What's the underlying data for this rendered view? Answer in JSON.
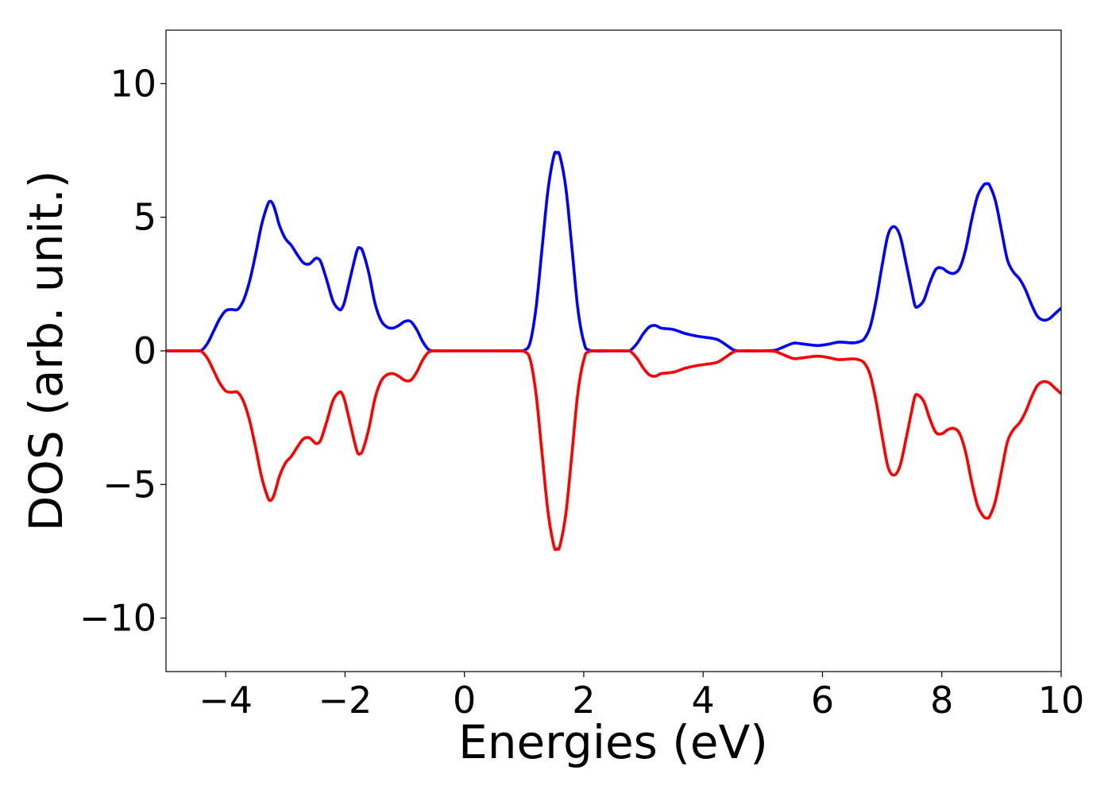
{
  "chart_data": {
    "type": "line",
    "xlabel": "Energies (eV)",
    "ylabel": "DOS (arb. unit.)",
    "xlim": [
      -5,
      10
    ],
    "ylim": [
      -12,
      12
    ],
    "xticks": [
      -4,
      -2,
      0,
      2,
      4,
      6,
      8,
      10
    ],
    "xtick_labels": [
      "−4",
      "−2",
      "0",
      "2",
      "4",
      "6",
      "8",
      "10"
    ],
    "yticks": [
      -10,
      -5,
      0,
      5,
      10
    ],
    "ytick_labels": [
      "−10",
      "−5",
      "0",
      "5",
      "10"
    ],
    "grid": false,
    "legend": "none",
    "series": [
      {
        "color": "#0000ff",
        "x": [
          -5.0,
          -4.5,
          -4.4,
          -4.3,
          -4.2,
          -4.1,
          -4.0,
          -3.9,
          -3.8,
          -3.7,
          -3.6,
          -3.5,
          -3.4,
          -3.3,
          -3.25,
          -3.2,
          -3.15,
          -3.1,
          -3.0,
          -2.9,
          -2.8,
          -2.7,
          -2.6,
          -2.5,
          -2.45,
          -2.4,
          -2.3,
          -2.2,
          -2.1,
          -2.05,
          -2.0,
          -1.9,
          -1.8,
          -1.75,
          -1.7,
          -1.6,
          -1.5,
          -1.4,
          -1.3,
          -1.2,
          -1.1,
          -1.0,
          -0.9,
          -0.8,
          -0.7,
          -0.6,
          -0.5,
          -0.3,
          0.0,
          0.5,
          0.9,
          1.0,
          1.1,
          1.2,
          1.3,
          1.4,
          1.5,
          1.55,
          1.6,
          1.7,
          1.8,
          1.9,
          2.0,
          2.1,
          2.5,
          2.75,
          2.8,
          2.9,
          3.0,
          3.1,
          3.2,
          3.3,
          3.5,
          3.7,
          3.9,
          4.2,
          4.3,
          4.4,
          4.5,
          4.6,
          5.0,
          5.2,
          5.3,
          5.5,
          5.6,
          5.9,
          6.1,
          6.2,
          6.3,
          6.5,
          6.6,
          6.7,
          6.8,
          6.9,
          7.0,
          7.1,
          7.2,
          7.3,
          7.4,
          7.5,
          7.55,
          7.6,
          7.7,
          7.8,
          7.9,
          8.0,
          8.1,
          8.2,
          8.3,
          8.4,
          8.5,
          8.6,
          8.7,
          8.75,
          8.8,
          8.9,
          9.0,
          9.1,
          9.2,
          9.3,
          9.4,
          9.5,
          9.6,
          9.7,
          9.8,
          9.9,
          10.0
        ],
        "y": [
          0.0,
          0.0,
          0.03,
          0.3,
          0.75,
          1.2,
          1.5,
          1.55,
          1.55,
          1.9,
          2.6,
          3.6,
          4.7,
          5.45,
          5.6,
          5.45,
          5.1,
          4.7,
          4.2,
          3.95,
          3.6,
          3.3,
          3.25,
          3.45,
          3.45,
          3.3,
          2.6,
          1.85,
          1.55,
          1.6,
          1.9,
          2.85,
          3.75,
          3.85,
          3.7,
          2.9,
          1.8,
          1.15,
          0.9,
          0.85,
          0.95,
          1.1,
          1.1,
          0.8,
          0.35,
          0.05,
          0.0,
          0.0,
          0.0,
          0.0,
          0.0,
          0.02,
          0.3,
          1.6,
          3.8,
          6.0,
          7.3,
          7.4,
          7.3,
          6.1,
          3.9,
          1.6,
          0.35,
          0.02,
          0.0,
          0.0,
          0.05,
          0.3,
          0.65,
          0.9,
          0.95,
          0.85,
          0.8,
          0.65,
          0.55,
          0.45,
          0.35,
          0.2,
          0.05,
          0.0,
          0.0,
          0.02,
          0.1,
          0.28,
          0.28,
          0.2,
          0.25,
          0.3,
          0.33,
          0.3,
          0.33,
          0.45,
          0.9,
          1.9,
          3.2,
          4.35,
          4.65,
          4.3,
          3.3,
          2.2,
          1.7,
          1.65,
          1.9,
          2.55,
          3.05,
          3.1,
          2.95,
          2.9,
          3.1,
          3.8,
          4.9,
          5.8,
          6.2,
          6.25,
          6.2,
          5.6,
          4.5,
          3.4,
          2.95,
          2.7,
          2.3,
          1.75,
          1.3,
          1.15,
          1.2,
          1.4,
          1.6
        ]
      },
      {
        "color": "#ff0000",
        "x": [
          -5.0,
          -4.5,
          -4.4,
          -4.3,
          -4.2,
          -4.1,
          -4.0,
          -3.9,
          -3.8,
          -3.7,
          -3.6,
          -3.5,
          -3.4,
          -3.3,
          -3.25,
          -3.2,
          -3.15,
          -3.1,
          -3.0,
          -2.9,
          -2.8,
          -2.7,
          -2.6,
          -2.5,
          -2.45,
          -2.4,
          -2.3,
          -2.2,
          -2.1,
          -2.05,
          -2.0,
          -1.9,
          -1.8,
          -1.75,
          -1.7,
          -1.6,
          -1.5,
          -1.4,
          -1.3,
          -1.2,
          -1.1,
          -1.0,
          -0.9,
          -0.8,
          -0.7,
          -0.6,
          -0.5,
          -0.3,
          0.0,
          0.5,
          0.9,
          1.0,
          1.1,
          1.2,
          1.3,
          1.4,
          1.5,
          1.55,
          1.6,
          1.7,
          1.8,
          1.9,
          2.0,
          2.1,
          2.5,
          2.75,
          2.8,
          2.9,
          3.0,
          3.1,
          3.2,
          3.3,
          3.5,
          3.7,
          3.9,
          4.2,
          4.3,
          4.4,
          4.5,
          4.6,
          5.0,
          5.2,
          5.3,
          5.5,
          5.6,
          5.9,
          6.1,
          6.2,
          6.3,
          6.5,
          6.6,
          6.7,
          6.8,
          6.9,
          7.0,
          7.1,
          7.2,
          7.3,
          7.4,
          7.5,
          7.55,
          7.6,
          7.7,
          7.8,
          7.9,
          8.0,
          8.1,
          8.2,
          8.3,
          8.4,
          8.5,
          8.6,
          8.7,
          8.75,
          8.8,
          8.9,
          9.0,
          9.1,
          9.2,
          9.3,
          9.4,
          9.5,
          9.6,
          9.7,
          9.8,
          9.9,
          10.0
        ],
        "y": [
          0.0,
          0.0,
          -0.03,
          -0.3,
          -0.75,
          -1.2,
          -1.5,
          -1.55,
          -1.55,
          -1.9,
          -2.6,
          -3.6,
          -4.7,
          -5.45,
          -5.6,
          -5.45,
          -5.1,
          -4.7,
          -4.2,
          -3.95,
          -3.6,
          -3.3,
          -3.25,
          -3.45,
          -3.45,
          -3.3,
          -2.6,
          -1.85,
          -1.55,
          -1.6,
          -1.9,
          -2.85,
          -3.75,
          -3.85,
          -3.7,
          -2.9,
          -1.8,
          -1.15,
          -0.9,
          -0.85,
          -0.95,
          -1.1,
          -1.1,
          -0.8,
          -0.35,
          -0.05,
          0.0,
          0.0,
          0.0,
          0.0,
          0.0,
          -0.02,
          -0.3,
          -1.6,
          -3.8,
          -6.0,
          -7.3,
          -7.4,
          -7.3,
          -6.1,
          -3.9,
          -1.6,
          -0.35,
          -0.02,
          0.0,
          0.0,
          -0.05,
          -0.3,
          -0.65,
          -0.9,
          -0.95,
          -0.85,
          -0.8,
          -0.65,
          -0.55,
          -0.45,
          -0.35,
          -0.2,
          -0.05,
          0.0,
          0.0,
          -0.02,
          -0.1,
          -0.28,
          -0.28,
          -0.2,
          -0.25,
          -0.3,
          -0.33,
          -0.3,
          -0.33,
          -0.45,
          -0.9,
          -1.9,
          -3.2,
          -4.35,
          -4.65,
          -4.3,
          -3.3,
          -2.2,
          -1.7,
          -1.65,
          -1.9,
          -2.55,
          -3.05,
          -3.1,
          -2.95,
          -2.9,
          -3.1,
          -3.8,
          -4.9,
          -5.8,
          -6.2,
          -6.25,
          -6.2,
          -5.6,
          -4.5,
          -3.4,
          -2.95,
          -2.7,
          -2.3,
          -1.75,
          -1.3,
          -1.15,
          -1.2,
          -1.4,
          -1.6
        ]
      }
    ]
  }
}
